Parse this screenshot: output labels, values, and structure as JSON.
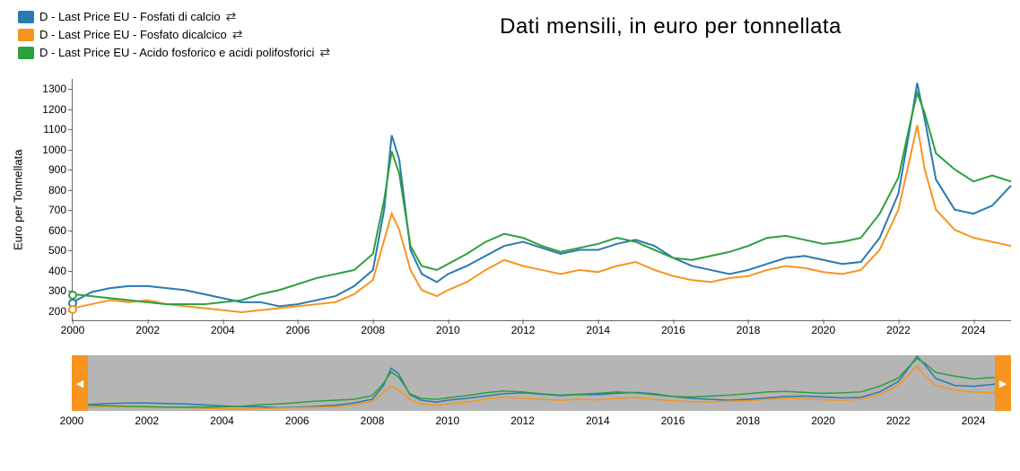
{
  "title": "Dati mensili, in euro per tonnellata",
  "ylabel": "Euro per Tonnellata",
  "legend": [
    {
      "label": "D - Last Price EU - Fosfati di calcio",
      "color": "#2a7ab0",
      "swap": "⇄"
    },
    {
      "label": "D - Last Price EU - Fosfato dicalcico",
      "color": "#f7941e",
      "swap": "⇄"
    },
    {
      "label": "D - Last Price EU - Acido fosforico e acidi polifosforici",
      "color": "#2e9f3e",
      "swap": "⇄"
    }
  ],
  "chart": {
    "type": "line",
    "xlim": [
      2000,
      2025
    ],
    "ylim": [
      150,
      1350
    ],
    "yticks": [
      200,
      300,
      400,
      500,
      600,
      700,
      800,
      900,
      1000,
      1100,
      1200,
      1300
    ],
    "xticks": [
      2000,
      2002,
      2004,
      2006,
      2008,
      2010,
      2012,
      2014,
      2016,
      2018,
      2020,
      2022,
      2024
    ],
    "background": "#ffffff",
    "axis_color": "#666666",
    "tick_fontsize": 12,
    "line_width": 2,
    "series": [
      {
        "name": "Fosfati di calcio",
        "color": "#2a7ab0",
        "marker_start": true,
        "data": [
          [
            2000.0,
            240
          ],
          [
            2000.5,
            290
          ],
          [
            2001.0,
            310
          ],
          [
            2001.5,
            320
          ],
          [
            2002.0,
            320
          ],
          [
            2002.5,
            310
          ],
          [
            2003.0,
            300
          ],
          [
            2003.5,
            280
          ],
          [
            2004.0,
            260
          ],
          [
            2004.5,
            240
          ],
          [
            2005.0,
            240
          ],
          [
            2005.5,
            220
          ],
          [
            2006.0,
            230
          ],
          [
            2006.5,
            250
          ],
          [
            2007.0,
            270
          ],
          [
            2007.5,
            320
          ],
          [
            2008.0,
            400
          ],
          [
            2008.3,
            700
          ],
          [
            2008.5,
            1070
          ],
          [
            2008.7,
            950
          ],
          [
            2009.0,
            500
          ],
          [
            2009.3,
            380
          ],
          [
            2009.7,
            340
          ],
          [
            2010.0,
            380
          ],
          [
            2010.5,
            420
          ],
          [
            2011.0,
            470
          ],
          [
            2011.5,
            520
          ],
          [
            2012.0,
            540
          ],
          [
            2012.5,
            510
          ],
          [
            2013.0,
            480
          ],
          [
            2013.5,
            500
          ],
          [
            2014.0,
            500
          ],
          [
            2014.5,
            530
          ],
          [
            2015.0,
            550
          ],
          [
            2015.5,
            520
          ],
          [
            2016.0,
            460
          ],
          [
            2016.5,
            420
          ],
          [
            2017.0,
            400
          ],
          [
            2017.5,
            380
          ],
          [
            2018.0,
            400
          ],
          [
            2018.5,
            430
          ],
          [
            2019.0,
            460
          ],
          [
            2019.5,
            470
          ],
          [
            2020.0,
            450
          ],
          [
            2020.5,
            430
          ],
          [
            2021.0,
            440
          ],
          [
            2021.5,
            560
          ],
          [
            2022.0,
            780
          ],
          [
            2022.3,
            1100
          ],
          [
            2022.5,
            1330
          ],
          [
            2022.7,
            1150
          ],
          [
            2023.0,
            850
          ],
          [
            2023.5,
            700
          ],
          [
            2024.0,
            680
          ],
          [
            2024.5,
            720
          ],
          [
            2025.0,
            820
          ]
        ]
      },
      {
        "name": "Fosfato dicalcico",
        "color": "#f7941e",
        "marker_start": true,
        "data": [
          [
            2000.0,
            210
          ],
          [
            2000.5,
            230
          ],
          [
            2001.0,
            250
          ],
          [
            2001.5,
            240
          ],
          [
            2002.0,
            250
          ],
          [
            2002.5,
            230
          ],
          [
            2003.0,
            220
          ],
          [
            2003.5,
            210
          ],
          [
            2004.0,
            200
          ],
          [
            2004.5,
            190
          ],
          [
            2005.0,
            200
          ],
          [
            2005.5,
            210
          ],
          [
            2006.0,
            220
          ],
          [
            2006.5,
            230
          ],
          [
            2007.0,
            240
          ],
          [
            2007.5,
            280
          ],
          [
            2008.0,
            350
          ],
          [
            2008.3,
            550
          ],
          [
            2008.5,
            680
          ],
          [
            2008.7,
            600
          ],
          [
            2009.0,
            400
          ],
          [
            2009.3,
            300
          ],
          [
            2009.7,
            270
          ],
          [
            2010.0,
            300
          ],
          [
            2010.5,
            340
          ],
          [
            2011.0,
            400
          ],
          [
            2011.5,
            450
          ],
          [
            2012.0,
            420
          ],
          [
            2012.5,
            400
          ],
          [
            2013.0,
            380
          ],
          [
            2013.5,
            400
          ],
          [
            2014.0,
            390
          ],
          [
            2014.5,
            420
          ],
          [
            2015.0,
            440
          ],
          [
            2015.5,
            400
          ],
          [
            2016.0,
            370
          ],
          [
            2016.5,
            350
          ],
          [
            2017.0,
            340
          ],
          [
            2017.5,
            360
          ],
          [
            2018.0,
            370
          ],
          [
            2018.5,
            400
          ],
          [
            2019.0,
            420
          ],
          [
            2019.5,
            410
          ],
          [
            2020.0,
            390
          ],
          [
            2020.5,
            380
          ],
          [
            2021.0,
            400
          ],
          [
            2021.5,
            500
          ],
          [
            2022.0,
            700
          ],
          [
            2022.3,
            950
          ],
          [
            2022.5,
            1120
          ],
          [
            2022.7,
            900
          ],
          [
            2023.0,
            700
          ],
          [
            2023.5,
            600
          ],
          [
            2024.0,
            560
          ],
          [
            2024.5,
            540
          ],
          [
            2025.0,
            520
          ]
        ]
      },
      {
        "name": "Acido fosforico",
        "color": "#2e9f3e",
        "marker_start": true,
        "data": [
          [
            2000.0,
            280
          ],
          [
            2000.5,
            270
          ],
          [
            2001.0,
            260
          ],
          [
            2001.5,
            250
          ],
          [
            2002.0,
            240
          ],
          [
            2002.5,
            230
          ],
          [
            2003.0,
            230
          ],
          [
            2003.5,
            230
          ],
          [
            2004.0,
            240
          ],
          [
            2004.5,
            250
          ],
          [
            2005.0,
            280
          ],
          [
            2005.5,
            300
          ],
          [
            2006.0,
            330
          ],
          [
            2006.5,
            360
          ],
          [
            2007.0,
            380
          ],
          [
            2007.5,
            400
          ],
          [
            2008.0,
            480
          ],
          [
            2008.3,
            750
          ],
          [
            2008.5,
            990
          ],
          [
            2008.7,
            880
          ],
          [
            2009.0,
            520
          ],
          [
            2009.3,
            420
          ],
          [
            2009.7,
            400
          ],
          [
            2010.0,
            430
          ],
          [
            2010.5,
            480
          ],
          [
            2011.0,
            540
          ],
          [
            2011.5,
            580
          ],
          [
            2012.0,
            560
          ],
          [
            2012.5,
            520
          ],
          [
            2013.0,
            490
          ],
          [
            2013.5,
            510
          ],
          [
            2014.0,
            530
          ],
          [
            2014.5,
            560
          ],
          [
            2015.0,
            540
          ],
          [
            2015.5,
            500
          ],
          [
            2016.0,
            460
          ],
          [
            2016.5,
            450
          ],
          [
            2017.0,
            470
          ],
          [
            2017.5,
            490
          ],
          [
            2018.0,
            520
          ],
          [
            2018.5,
            560
          ],
          [
            2019.0,
            570
          ],
          [
            2019.5,
            550
          ],
          [
            2020.0,
            530
          ],
          [
            2020.5,
            540
          ],
          [
            2021.0,
            560
          ],
          [
            2021.5,
            680
          ],
          [
            2022.0,
            860
          ],
          [
            2022.3,
            1120
          ],
          [
            2022.5,
            1280
          ],
          [
            2022.7,
            1180
          ],
          [
            2023.0,
            980
          ],
          [
            2023.5,
            900
          ],
          [
            2024.0,
            840
          ],
          [
            2024.5,
            870
          ],
          [
            2025.0,
            840
          ]
        ]
      }
    ]
  },
  "mini": {
    "background": "#b5b5b5",
    "handle_color": "#f7941e",
    "handle_glyph_left": "◀",
    "handle_glyph_right": "▶",
    "xticks": [
      2000,
      2002,
      2004,
      2006,
      2008,
      2010,
      2012,
      2014,
      2016,
      2018,
      2020,
      2022,
      2024
    ]
  }
}
